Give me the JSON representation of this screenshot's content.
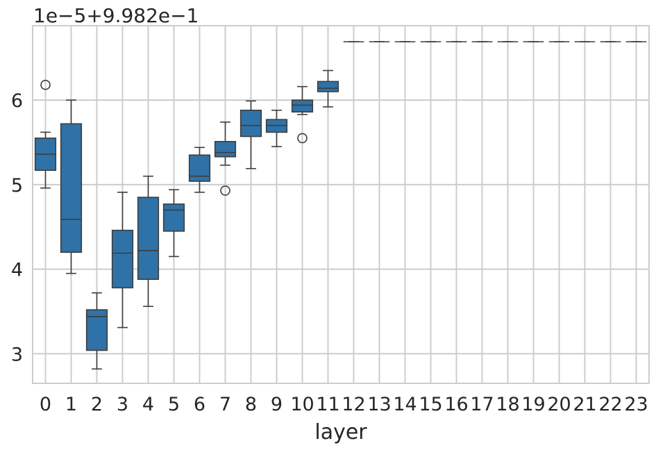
{
  "chart_data": {
    "type": "boxplot",
    "offset_text": "1e−5+9.982e−1",
    "xlabel": "layer",
    "ylabel": "",
    "categories": [
      "0",
      "1",
      "2",
      "3",
      "4",
      "5",
      "6",
      "7",
      "8",
      "9",
      "10",
      "11",
      "12",
      "13",
      "14",
      "15",
      "16",
      "17",
      "18",
      "19",
      "20",
      "21",
      "22",
      "23"
    ],
    "yticks": [
      3,
      4,
      5,
      6
    ],
    "ylim": [
      2.65,
      6.88
    ],
    "grid": true,
    "box_color": "#2f72a8",
    "edge_color": "#3d3d3d",
    "grid_color": "#cccccc",
    "boxes": [
      {
        "layer": "0",
        "whislo": 4.96,
        "q1": 5.17,
        "med": 5.36,
        "q3": 5.55,
        "whishi": 5.62,
        "fliers": [
          6.18
        ]
      },
      {
        "layer": "1",
        "whislo": 3.95,
        "q1": 4.2,
        "med": 4.59,
        "q3": 5.72,
        "whishi": 6.0,
        "fliers": []
      },
      {
        "layer": "2",
        "whislo": 2.82,
        "q1": 3.04,
        "med": 3.44,
        "q3": 3.52,
        "whishi": 3.72,
        "fliers": []
      },
      {
        "layer": "3",
        "whislo": 3.31,
        "q1": 3.78,
        "med": 4.19,
        "q3": 4.46,
        "whishi": 4.91,
        "fliers": []
      },
      {
        "layer": "4",
        "whislo": 3.56,
        "q1": 3.88,
        "med": 4.22,
        "q3": 4.85,
        "whishi": 5.1,
        "fliers": []
      },
      {
        "layer": "5",
        "whislo": 4.15,
        "q1": 4.45,
        "med": 4.7,
        "q3": 4.77,
        "whishi": 4.94,
        "fliers": []
      },
      {
        "layer": "6",
        "whislo": 4.91,
        "q1": 5.04,
        "med": 5.1,
        "q3": 5.35,
        "whishi": 5.44,
        "fliers": []
      },
      {
        "layer": "7",
        "whislo": 5.23,
        "q1": 5.33,
        "med": 5.38,
        "q3": 5.51,
        "whishi": 5.74,
        "fliers": [
          4.93
        ]
      },
      {
        "layer": "8",
        "whislo": 5.19,
        "q1": 5.57,
        "med": 5.7,
        "q3": 5.88,
        "whishi": 5.99,
        "fliers": []
      },
      {
        "layer": "9",
        "whislo": 5.45,
        "q1": 5.62,
        "med": 5.7,
        "q3": 5.77,
        "whishi": 5.88,
        "fliers": []
      },
      {
        "layer": "10",
        "whislo": 5.83,
        "q1": 5.86,
        "med": 5.94,
        "q3": 6.0,
        "whishi": 6.16,
        "fliers": [
          5.55
        ]
      },
      {
        "layer": "11",
        "whislo": 5.92,
        "q1": 6.1,
        "med": 6.14,
        "q3": 6.22,
        "whishi": 6.35,
        "fliers": []
      },
      {
        "layer": "12",
        "whislo": 6.69,
        "q1": 6.69,
        "med": 6.69,
        "q3": 6.69,
        "whishi": 6.69,
        "fliers": []
      },
      {
        "layer": "13",
        "whislo": 6.69,
        "q1": 6.69,
        "med": 6.69,
        "q3": 6.69,
        "whishi": 6.69,
        "fliers": []
      },
      {
        "layer": "14",
        "whislo": 6.69,
        "q1": 6.69,
        "med": 6.69,
        "q3": 6.69,
        "whishi": 6.69,
        "fliers": []
      },
      {
        "layer": "15",
        "whislo": 6.69,
        "q1": 6.69,
        "med": 6.69,
        "q3": 6.69,
        "whishi": 6.69,
        "fliers": []
      },
      {
        "layer": "16",
        "whislo": 6.69,
        "q1": 6.69,
        "med": 6.69,
        "q3": 6.69,
        "whishi": 6.69,
        "fliers": []
      },
      {
        "layer": "17",
        "whislo": 6.69,
        "q1": 6.69,
        "med": 6.69,
        "q3": 6.69,
        "whishi": 6.69,
        "fliers": []
      },
      {
        "layer": "18",
        "whislo": 6.69,
        "q1": 6.69,
        "med": 6.69,
        "q3": 6.69,
        "whishi": 6.69,
        "fliers": []
      },
      {
        "layer": "19",
        "whislo": 6.69,
        "q1": 6.69,
        "med": 6.69,
        "q3": 6.69,
        "whishi": 6.69,
        "fliers": []
      },
      {
        "layer": "20",
        "whislo": 6.69,
        "q1": 6.69,
        "med": 6.69,
        "q3": 6.69,
        "whishi": 6.69,
        "fliers": []
      },
      {
        "layer": "21",
        "whislo": 6.69,
        "q1": 6.69,
        "med": 6.69,
        "q3": 6.69,
        "whishi": 6.69,
        "fliers": []
      },
      {
        "layer": "22",
        "whislo": 6.69,
        "q1": 6.69,
        "med": 6.69,
        "q3": 6.69,
        "whishi": 6.69,
        "fliers": []
      },
      {
        "layer": "23",
        "whislo": 6.69,
        "q1": 6.69,
        "med": 6.69,
        "q3": 6.69,
        "whishi": 6.69,
        "fliers": []
      }
    ]
  }
}
